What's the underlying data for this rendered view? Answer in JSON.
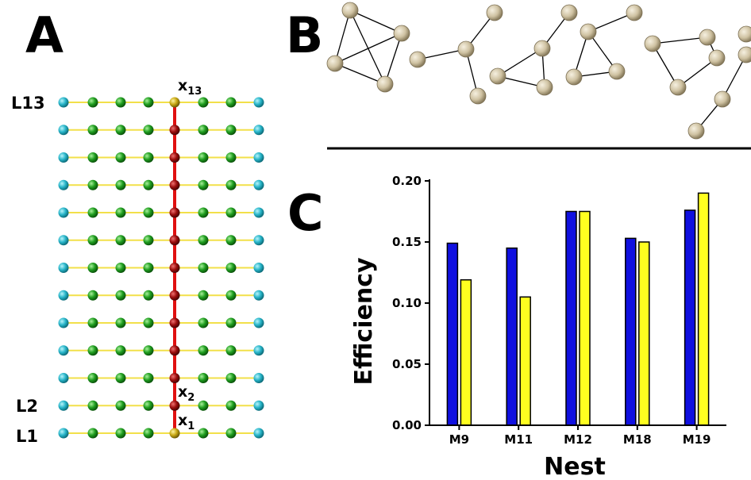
{
  "panels": {
    "a": "A",
    "b": "B",
    "c": "C"
  },
  "lattice": {
    "row_labels": {
      "top": "L13",
      "second": "L2",
      "bottom": "L1"
    },
    "node_labels": {
      "top": "x",
      "top_sub": "13",
      "second": "x",
      "second_sub": "2",
      "bottom": "x",
      "bottom_sub": "1"
    },
    "rows": 13,
    "columns": 8,
    "highlight_column": 5,
    "colors": {
      "edge_node": "#27b5c9",
      "inner_node": "#1f9e1f",
      "chain_node": "#9b0d0d",
      "end_node": "#c8a814",
      "bond": "#f2e04a",
      "chain": "#e01010"
    }
  },
  "motifs": {
    "node_color": "#cfc2a2",
    "edge_color": "#000000"
  },
  "chart_data": {
    "type": "bar",
    "categories": [
      "M9",
      "M11",
      "M12",
      "M18",
      "M19"
    ],
    "series": [
      {
        "values": [
          0.149,
          0.145,
          0.175,
          0.153,
          0.176
        ],
        "color": "#1010e0"
      },
      {
        "values": [
          0.119,
          0.105,
          0.175,
          0.15,
          0.19
        ],
        "color": "#ffff20"
      }
    ],
    "xlabel": "Nest",
    "ylabel": "Efficiency",
    "ylim": [
      0,
      0.2
    ],
    "yticks": [
      "0.00",
      "0.05",
      "0.10",
      "0.15",
      "0.20"
    ],
    "grid": false
  }
}
